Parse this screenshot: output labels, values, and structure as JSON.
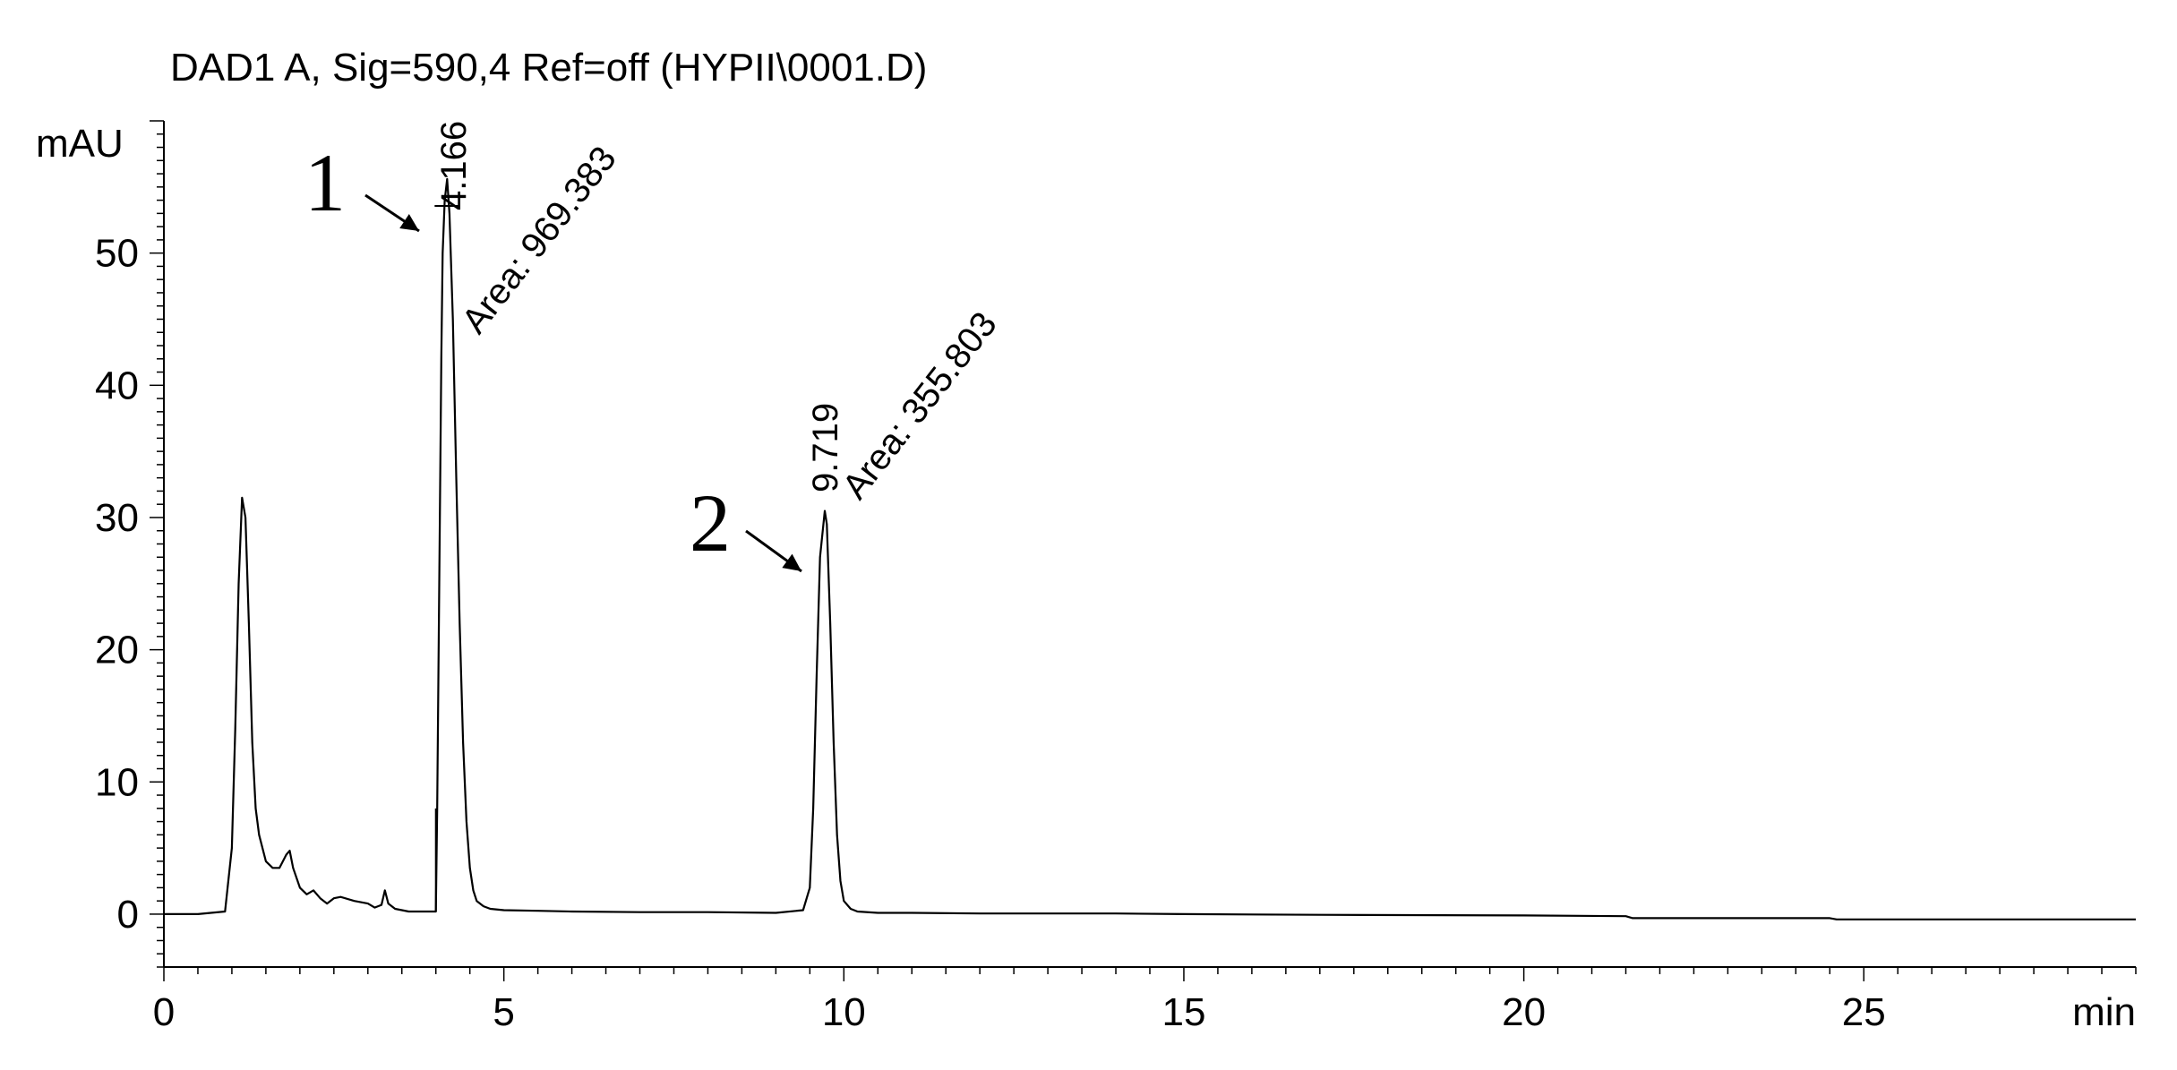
{
  "chart_data": {
    "type": "line",
    "title": "DAD1 A, Sig=590,4 Ref=off (HYPII\\0001.D)",
    "xlabel": "min",
    "ylabel": "mAU",
    "xlim": [
      0,
      29
    ],
    "ylim": [
      -4,
      60
    ],
    "x_ticks": [
      0,
      5,
      10,
      15,
      20,
      25
    ],
    "y_ticks": [
      0,
      10,
      20,
      30,
      40,
      50
    ],
    "x_tick_labels": [
      "0",
      "5",
      "10",
      "15",
      "20",
      "25"
    ],
    "y_tick_labels": [
      "0",
      "10",
      "20",
      "30",
      "40",
      "50"
    ],
    "grid": false,
    "series": [
      {
        "x": [
          0,
          0.5,
          0.9,
          1.0,
          1.05,
          1.1,
          1.15,
          1.2,
          1.25,
          1.3,
          1.35,
          1.4,
          1.5,
          1.6,
          1.7,
          1.8,
          1.85,
          1.9,
          2.0,
          2.1,
          2.2,
          2.3,
          2.4,
          2.5,
          2.6,
          2.8,
          3.0,
          3.1,
          3.2,
          3.25,
          3.3,
          3.4,
          3.6,
          3.8,
          4.0,
          4.02,
          4.05,
          4.08,
          4.1,
          4.13,
          4.166,
          4.2,
          4.25,
          4.3,
          4.35,
          4.4,
          4.45,
          4.5,
          4.55,
          4.6,
          4.7,
          4.8,
          5.0,
          5.5,
          6.0,
          7.0,
          8.0,
          9.0,
          9.4,
          9.5,
          9.55,
          9.6,
          9.65,
          9.719,
          9.75,
          9.8,
          9.85,
          9.9,
          9.95,
          10.0,
          10.1,
          10.2,
          10.5,
          11.0,
          12.0,
          14.0,
          15.0,
          17.0,
          20.0,
          21.5,
          21.6,
          23.0,
          24.5,
          24.6,
          27.0,
          29.0
        ],
        "y": [
          0,
          0,
          0.2,
          5.0,
          14.0,
          25.0,
          31.5,
          30.0,
          22.0,
          13.0,
          8.0,
          6.0,
          4.0,
          3.5,
          3.5,
          4.5,
          4.8,
          3.5,
          2.0,
          1.5,
          1.8,
          1.2,
          0.8,
          1.2,
          1.3,
          1.0,
          0.8,
          0.5,
          0.7,
          1.8,
          0.8,
          0.4,
          0.2,
          0.2,
          0.2,
          8.0,
          25.0,
          42.0,
          50.0,
          54.0,
          55.6,
          53.0,
          45.0,
          33.0,
          22.0,
          13.0,
          7.0,
          3.5,
          1.8,
          1.0,
          0.6,
          0.4,
          0.3,
          0.25,
          0.2,
          0.15,
          0.15,
          0.1,
          0.3,
          2.0,
          8.0,
          18.0,
          27.0,
          30.5,
          29.5,
          22.0,
          13.0,
          6.0,
          2.5,
          1.0,
          0.4,
          0.2,
          0.1,
          0.1,
          0.05,
          0.05,
          0.0,
          -0.05,
          -0.1,
          -0.15,
          -0.3,
          -0.3,
          -0.3,
          -0.4,
          -0.4,
          -0.4
        ]
      }
    ],
    "annotations": [
      {
        "text": "4.166",
        "x": 4.166,
        "y": 55.6,
        "label": "1",
        "area_text": "Area: 969.383"
      },
      {
        "text": "9.719",
        "x": 9.719,
        "y": 30.5,
        "label": "2",
        "area_text": "Area: 355.803"
      }
    ]
  }
}
